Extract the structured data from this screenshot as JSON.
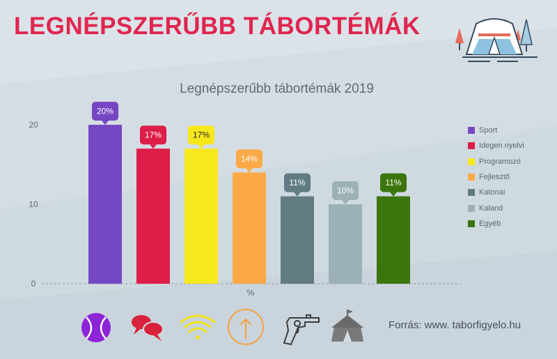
{
  "header": {
    "title": "LEGNÉPSZERŰBB TÁBORTÉMÁK"
  },
  "source": "Forrás: www. taborfigyelo.hu",
  "colors": {
    "title": "#e0264f",
    "background": "#d5dde4"
  },
  "chart_data": {
    "type": "bar",
    "title": "Legnépszerűbb tábortémák 2019",
    "xlabel": "%",
    "ylabel": "",
    "ylim": [
      0,
      20
    ],
    "yticks": [
      "0",
      "10",
      "20"
    ],
    "legend_position": "right",
    "grid": false,
    "categories": [
      "Sport",
      "Idegen nyelvi",
      "Programozó",
      "Fejlesztő",
      "Katonai",
      "Kaland",
      "Egyéb"
    ],
    "values": [
      20,
      17,
      17,
      14,
      11,
      10,
      11
    ],
    "labels": [
      "20%",
      "17%",
      "17%",
      "14%",
      "11%",
      "10%",
      "11%"
    ],
    "colors": [
      "#7647c3",
      "#dd1e48",
      "#f6e81c",
      "#fca947",
      "#617b82",
      "#9bb1b6",
      "#3b750d"
    ],
    "label_text_colors": [
      "#ffffff",
      "#ffffff",
      "#222222",
      "#ffffff",
      "#ffffff",
      "#ffffff",
      "#ffffff"
    ]
  },
  "icons": [
    "tennis-ball-icon",
    "speech-bubbles-icon",
    "wifi-icon",
    "arrow-up-icon",
    "revolver-icon",
    "circus-tent-icon"
  ],
  "logo": "camp-tent-icon"
}
